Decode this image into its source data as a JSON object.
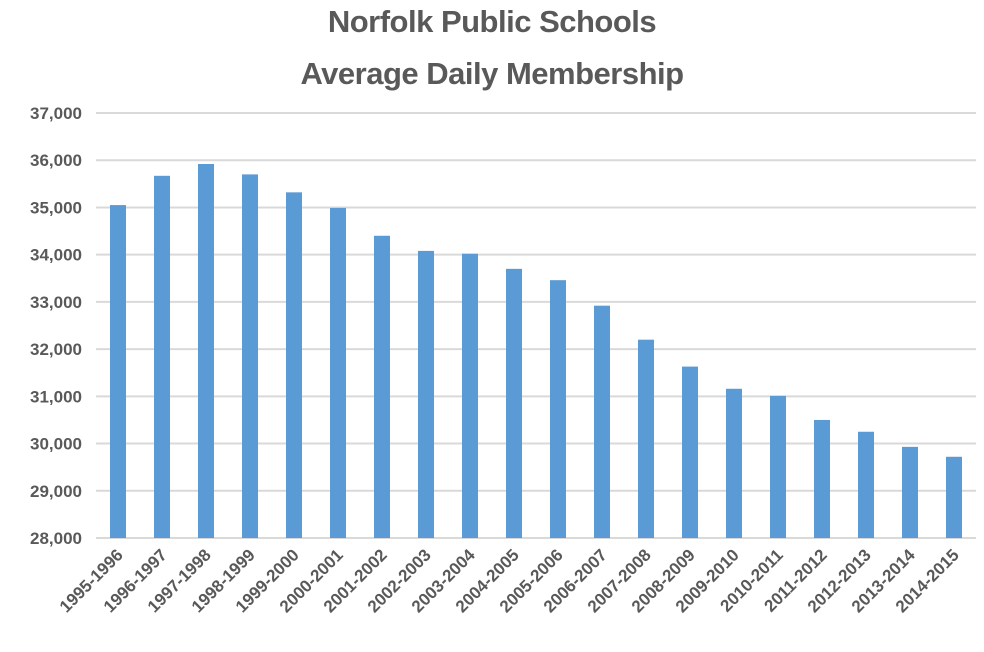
{
  "chart_data": {
    "type": "bar",
    "title": "Norfolk Public Schools",
    "subtitle": "Average Daily Membership",
    "categories": [
      "1995-1996",
      "1996-1997",
      "1997-1998",
      "1998-1999",
      "1999-2000",
      "2000-2001",
      "2001-2002",
      "2002-2003",
      "2003-2004",
      "2004-2005",
      "2005-2006",
      "2006-2007",
      "2007-2008",
      "2008-2009",
      "2009-2010",
      "2010-2011",
      "2011-2012",
      "2012-2013",
      "2013-2014",
      "2014-2015"
    ],
    "values": [
      35050,
      35670,
      35920,
      35700,
      35320,
      34990,
      34400,
      34080,
      34020,
      33700,
      33460,
      32920,
      32200,
      31630,
      31160,
      31010,
      30500,
      30250,
      29930,
      29720
    ],
    "ylim": [
      28000,
      37000
    ],
    "yticks": [
      28000,
      29000,
      30000,
      31000,
      32000,
      33000,
      34000,
      35000,
      36000,
      37000
    ],
    "ytick_labels": [
      "28,000",
      "29,000",
      "30,000",
      "31,000",
      "32,000",
      "33,000",
      "34,000",
      "35,000",
      "36,000",
      "37,000"
    ],
    "xlabel": "",
    "ylabel": "",
    "grid": true,
    "colors": {
      "bar": "#5b9bd5",
      "grid": "#d9d9d9",
      "text": "#595959"
    }
  }
}
